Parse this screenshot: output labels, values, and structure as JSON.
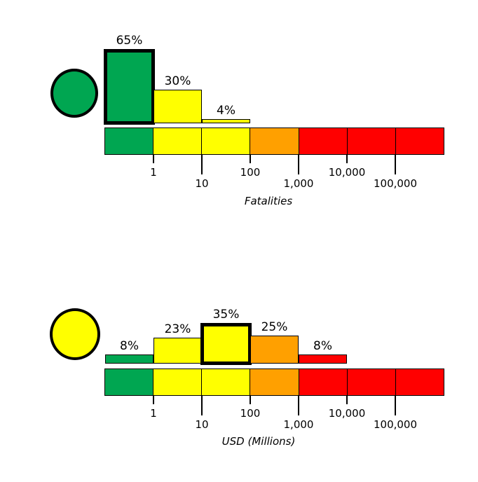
{
  "background_color": "#FFFFFF",
  "palette": {
    "green": "#00A651",
    "yellow": "#FFFF00",
    "orange": "#FFA000",
    "red": "#FF0000",
    "outline": "#000000"
  },
  "chart_data": [
    {
      "type": "bar",
      "panel": "fatalities",
      "xlabel": "Fatalities",
      "x_scale": "log",
      "x_tick_labels": [
        "1",
        "10",
        "100",
        "1,000",
        "10,000",
        "100,000"
      ],
      "marker": {
        "shape": "circle",
        "color": "#00A651"
      },
      "bars": [
        {
          "segment": 0,
          "label": "65%",
          "value_pct": 65,
          "color": "#00A651",
          "highlighted": true
        },
        {
          "segment": 1,
          "label": "30%",
          "value_pct": 30,
          "color": "#FFFF00",
          "highlighted": false
        },
        {
          "segment": 2,
          "label": "4%",
          "value_pct": 4,
          "color": "#FFFF00",
          "highlighted": false
        }
      ],
      "scale_segment_colors": [
        "#00A651",
        "#FFFF00",
        "#FFFF00",
        "#FFA000",
        "#FF0000",
        "#FF0000",
        "#FF0000"
      ]
    },
    {
      "type": "bar",
      "panel": "usd-millions",
      "xlabel": "USD (Millions)",
      "x_scale": "log",
      "x_tick_labels": [
        "1",
        "10",
        "100",
        "1,000",
        "10,000",
        "100,000"
      ],
      "marker": {
        "shape": "circle",
        "color": "#FFFF00"
      },
      "bars": [
        {
          "segment": 0,
          "label": "8%",
          "value_pct": 8,
          "color": "#00A651",
          "highlighted": false
        },
        {
          "segment": 1,
          "label": "23%",
          "value_pct": 23,
          "color": "#FFFF00",
          "highlighted": false
        },
        {
          "segment": 2,
          "label": "35%",
          "value_pct": 35,
          "color": "#FFFF00",
          "highlighted": true
        },
        {
          "segment": 3,
          "label": "25%",
          "value_pct": 25,
          "color": "#FFA000",
          "highlighted": false
        },
        {
          "segment": 4,
          "label": "8%",
          "value_pct": 8,
          "color": "#FF0000",
          "highlighted": false
        }
      ],
      "scale_segment_colors": [
        "#00A651",
        "#FFFF00",
        "#FFFF00",
        "#FFA000",
        "#FF0000",
        "#FF0000",
        "#FF0000"
      ]
    }
  ]
}
